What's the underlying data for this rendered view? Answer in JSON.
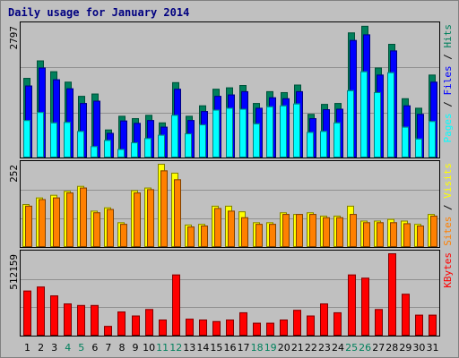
{
  "title": "Daily usage for January 2014",
  "colors": {
    "hits": "#00805c",
    "files": "#0000ff",
    "pages": "#00ffff",
    "visits": "#ffff00",
    "sites": "#ff8000",
    "kbytes": "#ff0000",
    "weekend_label": "#00805c",
    "weekday_label": "#000000",
    "panel_bg": "#c0c0c0",
    "grid": "#909090"
  },
  "chart_data": [
    {
      "type": "bar",
      "ymax_label": "2797",
      "ylim": [
        0,
        2797
      ],
      "legend": [
        {
          "text": "Pages",
          "color": "#00ffff"
        },
        {
          "text": " / ",
          "color": "#000000"
        },
        {
          "text": "Files",
          "color": "#0000ff"
        },
        {
          "text": " / ",
          "color": "#000000"
        },
        {
          "text": "Hits",
          "color": "#00805c"
        }
      ],
      "series": [
        {
          "name": "Hits",
          "values": [
            1680,
            2050,
            1820,
            1600,
            1300,
            1350,
            590,
            880,
            830,
            900,
            740,
            1590,
            880,
            1100,
            1450,
            1480,
            1530,
            1150,
            1400,
            1380,
            1540,
            920,
            1130,
            1150,
            2640,
            2780,
            1900,
            2400,
            1250,
            1050,
            1750
          ]
        },
        {
          "name": "Files",
          "values": [
            1520,
            1900,
            1650,
            1460,
            1150,
            1200,
            520,
            780,
            730,
            790,
            650,
            1450,
            790,
            980,
            1300,
            1330,
            1400,
            1050,
            1270,
            1250,
            1400,
            830,
            1020,
            1030,
            2480,
            2600,
            1750,
            2260,
            1100,
            920,
            1600
          ]
        },
        {
          "name": "Pages",
          "values": [
            790,
            960,
            740,
            750,
            560,
            240,
            370,
            180,
            320,
            410,
            480,
            900,
            510,
            700,
            1010,
            1050,
            1030,
            720,
            1080,
            1100,
            1140,
            540,
            560,
            740,
            1420,
            1820,
            1380,
            1800,
            650,
            400,
            770
          ]
        }
      ]
    },
    {
      "type": "bar",
      "ymax_label": "252",
      "ylim": [
        0,
        252
      ],
      "legend": [
        {
          "text": "Sites",
          "color": "#ff8000"
        },
        {
          "text": " / ",
          "color": "#000000"
        },
        {
          "text": "Visits",
          "color": "#ffff00"
        }
      ],
      "series": [
        {
          "name": "Visits",
          "values": [
            130,
            150,
            158,
            170,
            185,
            110,
            120,
            75,
            172,
            180,
            252,
            225,
            68,
            70,
            125,
            125,
            108,
            75,
            75,
            105,
            100,
            105,
            95,
            95,
            125,
            80,
            80,
            85,
            80,
            70,
            100
          ]
        },
        {
          "name": "Sites",
          "values": [
            125,
            145,
            150,
            165,
            180,
            105,
            115,
            70,
            165,
            175,
            232,
            205,
            62,
            65,
            118,
            110,
            90,
            70,
            70,
            100,
            100,
            100,
            90,
            90,
            100,
            75,
            75,
            75,
            72,
            65,
            95
          ]
        }
      ]
    },
    {
      "type": "bar",
      "ymax_label": "512159",
      "ylim": [
        0,
        512159
      ],
      "legend": [
        {
          "text": "KBytes",
          "color": "#ff0000"
        }
      ],
      "series": [
        {
          "name": "KBytes",
          "values": [
            280000,
            305000,
            250000,
            200000,
            190000,
            190000,
            60000,
            150000,
            125000,
            165000,
            100000,
            380000,
            105000,
            100000,
            90000,
            100000,
            145000,
            80000,
            80000,
            100000,
            160000,
            125000,
            200000,
            145000,
            380000,
            360000,
            165000,
            512159,
            260000,
            130000,
            130000
          ]
        }
      ]
    }
  ],
  "days": [
    "1",
    "2",
    "3",
    "4",
    "5",
    "6",
    "7",
    "8",
    "9",
    "10",
    "11",
    "12",
    "13",
    "14",
    "15",
    "16",
    "17",
    "18",
    "19",
    "20",
    "21",
    "22",
    "23",
    "24",
    "25",
    "26",
    "27",
    "28",
    "29",
    "30",
    "31"
  ],
  "weekend_days": [
    4,
    5,
    11,
    12,
    18,
    19,
    25,
    26
  ]
}
